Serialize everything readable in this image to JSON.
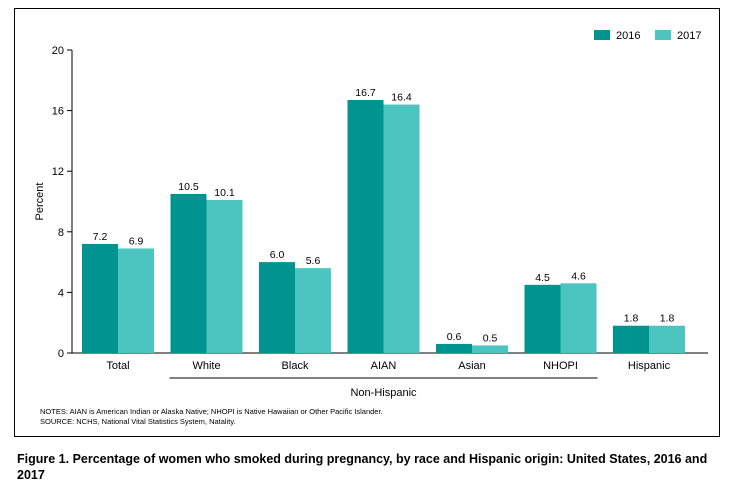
{
  "chart_data": {
    "type": "bar",
    "title": "",
    "xlabel": "",
    "ylabel": "Percent",
    "ylim": [
      0,
      20
    ],
    "yticks": [
      "0",
      "4",
      "8",
      "12",
      "16",
      "20"
    ],
    "categories": [
      "Total",
      "White",
      "Black",
      "AIAN",
      "Asian",
      "NHOPI",
      "Hispanic"
    ],
    "series": [
      {
        "name": "2016",
        "color": "#009490",
        "values": [
          7.2,
          10.5,
          6.0,
          16.7,
          0.6,
          4.5,
          1.8
        ],
        "labels": [
          "7.2",
          "10.5",
          "6.0",
          "16.7",
          "0.6",
          "4.5",
          "1.8"
        ]
      },
      {
        "name": "2017",
        "color": "#4cc4c0",
        "values": [
          6.9,
          10.1,
          5.6,
          16.4,
          0.5,
          4.6,
          1.8
        ],
        "labels": [
          "6.9",
          "10.1",
          "5.6",
          "16.4",
          "0.5",
          "4.6",
          "1.8"
        ]
      }
    ],
    "group_label": "Non-Hispanic",
    "legend_position": "top-right"
  },
  "notes": {
    "line1": "NOTES: AIAN is American Indian or Alaska Native; NHOPI is Native Hawaiian or Other Pacific Islander.",
    "line2": "SOURCE: NCHS, National Vital Statistics System, Natality."
  },
  "caption": "Figure 1. Percentage of women who smoked during pregnancy, by race and Hispanic origin: United States, 2016 and 2017"
}
